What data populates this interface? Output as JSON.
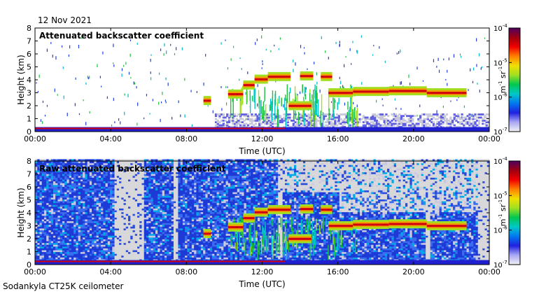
{
  "date": "12 Nov 2021",
  "footer": "Sodankyla CT25K ceilometer",
  "colors": {
    "cbar_stops": [
      "#f2f2f4",
      "#a8a8f4",
      "#2020e0",
      "#0078f0",
      "#00c8c8",
      "#00c850",
      "#a0e020",
      "#f0e000",
      "#ff8000",
      "#f00000",
      "#a00010",
      "#500060"
    ],
    "no_signal": "#d8d8da",
    "dense_blue": "#1e3ad6"
  },
  "chart_data": [
    {
      "type": "heatmap",
      "title": "Attenuated backscatter coefficient",
      "xlabel": "Time (UTC)",
      "ylabel": "Height (km)",
      "x_ticks": [
        "00:00",
        "04:00",
        "08:00",
        "12:00",
        "16:00",
        "20:00",
        "00:00"
      ],
      "y_ticks": [
        "0",
        "1",
        "2",
        "3",
        "4",
        "5",
        "6",
        "7",
        "8"
      ],
      "xlim": [
        0,
        24
      ],
      "ylim": [
        0,
        8
      ],
      "colorbar": {
        "unit_base": "m",
        "unit_exp": "-1",
        "unit_base2": " sr",
        "unit_exp2": "-1",
        "ticks": [
          {
            "base": "10",
            "exp": "-4"
          },
          {
            "base": "10",
            "exp": "-5"
          },
          {
            "base": "10",
            "exp": "-6"
          },
          {
            "base": "10",
            "exp": "-7"
          }
        ],
        "scale": "log",
        "range": [
          "1e-7",
          "1e-4"
        ]
      },
      "noise": "low",
      "cloud_layers": [
        {
          "t0": 8.9,
          "t1": 9.3,
          "h": 2.4
        },
        {
          "t0": 10.2,
          "t1": 11.0,
          "h": 2.9
        },
        {
          "t0": 11.0,
          "t1": 11.6,
          "h": 3.6
        },
        {
          "t0": 11.6,
          "t1": 12.3,
          "h": 4.05
        },
        {
          "t0": 12.3,
          "t1": 13.5,
          "h": 4.25
        },
        {
          "t0": 14.0,
          "t1": 14.7,
          "h": 4.3
        },
        {
          "t0": 15.1,
          "t1": 15.7,
          "h": 4.25
        },
        {
          "t0": 15.5,
          "t1": 16.8,
          "h": 3.0
        },
        {
          "t0": 16.8,
          "t1": 18.7,
          "h": 3.1
        },
        {
          "t0": 18.7,
          "t1": 20.7,
          "h": 3.15
        },
        {
          "t0": 20.7,
          "t1": 22.8,
          "h": 3.0
        },
        {
          "t0": 13.4,
          "t1": 14.6,
          "h": 2.0
        }
      ]
    },
    {
      "type": "heatmap",
      "title": "Raw attenuated backscatter coefficient",
      "xlabel": "Time (UTC)",
      "ylabel": "Height (km)",
      "x_ticks": [
        "00:00",
        "04:00",
        "08:00",
        "12:00",
        "16:00",
        "20:00",
        "00:00"
      ],
      "y_ticks": [
        "0",
        "1",
        "2",
        "3",
        "4",
        "5",
        "6",
        "7",
        "8"
      ],
      "xlim": [
        0,
        24
      ],
      "ylim": [
        0,
        8
      ],
      "colorbar": {
        "unit_base": "m",
        "unit_exp": "-1",
        "unit_base2": " sr",
        "unit_exp2": "-1",
        "ticks": [
          {
            "base": "10",
            "exp": "-4"
          },
          {
            "base": "10",
            "exp": "-5"
          },
          {
            "base": "10",
            "exp": "-6"
          },
          {
            "base": "10",
            "exp": "-7"
          }
        ],
        "scale": "log",
        "range": [
          "1e-7",
          "1e-4"
        ]
      },
      "noise": "high",
      "cloud_layers": [
        {
          "t0": 8.9,
          "t1": 9.3,
          "h": 2.4
        },
        {
          "t0": 10.2,
          "t1": 11.0,
          "h": 2.9
        },
        {
          "t0": 11.0,
          "t1": 11.6,
          "h": 3.6
        },
        {
          "t0": 11.6,
          "t1": 12.3,
          "h": 4.05
        },
        {
          "t0": 12.3,
          "t1": 13.5,
          "h": 4.25
        },
        {
          "t0": 14.0,
          "t1": 14.7,
          "h": 4.3
        },
        {
          "t0": 15.1,
          "t1": 15.7,
          "h": 4.25
        },
        {
          "t0": 15.5,
          "t1": 16.8,
          "h": 3.0
        },
        {
          "t0": 16.8,
          "t1": 18.7,
          "h": 3.1
        },
        {
          "t0": 18.7,
          "t1": 20.7,
          "h": 3.15
        },
        {
          "t0": 20.7,
          "t1": 22.8,
          "h": 3.0
        },
        {
          "t0": 13.4,
          "t1": 14.6,
          "h": 2.0
        }
      ]
    }
  ]
}
